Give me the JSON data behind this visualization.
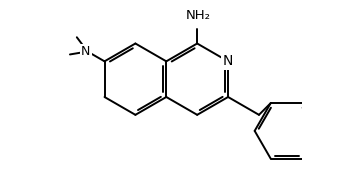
{
  "bg_color": "#ffffff",
  "line_color": "#000000",
  "text_color": "#000000",
  "line_width": 1.4,
  "font_size": 9,
  "fig_width": 3.54,
  "fig_height": 1.94,
  "dpi": 100,
  "xlim": [
    -3.2,
    3.8
  ],
  "ylim": [
    -3.2,
    2.2
  ]
}
